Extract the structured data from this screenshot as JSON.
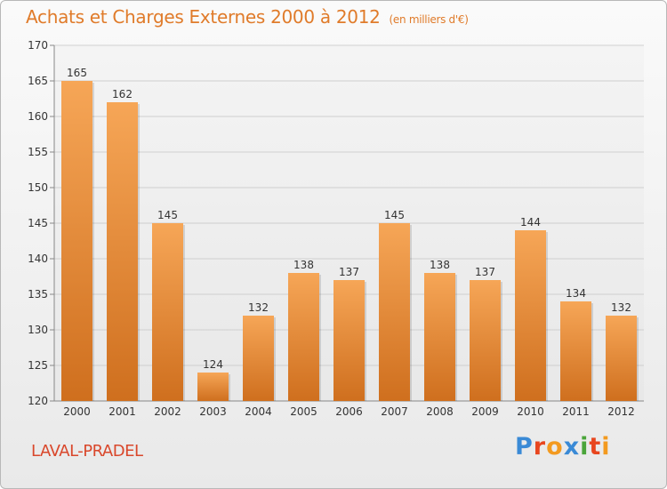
{
  "header": {
    "title": "Achats et Charges Externes 2000 à 2012",
    "unit": "(en milliers d'€)"
  },
  "footer": {
    "commune": "LAVAL-PRADEL",
    "logo_letters": [
      "P",
      "r",
      "o",
      "x",
      "i",
      "t",
      "i"
    ]
  },
  "colors": {
    "bar_top": "#f6a657",
    "bar_bottom": "#cf6f1e",
    "title": "#e07b2a",
    "commune": "#d9472b",
    "logo": [
      "#3a8ad6",
      "#e8461f",
      "#f39a1f",
      "#3a8ad6",
      "#4aa53a",
      "#e8461f",
      "#f39a1f"
    ]
  },
  "chart_data": {
    "type": "bar",
    "title": "Achats et Charges Externes 2000 à 2012",
    "subtitle": "(en milliers d'€)",
    "categories": [
      "2000",
      "2001",
      "2002",
      "2003",
      "2004",
      "2005",
      "2006",
      "2007",
      "2008",
      "2009",
      "2010",
      "2011",
      "2012"
    ],
    "values": [
      165,
      162,
      145,
      124,
      132,
      138,
      137,
      145,
      138,
      137,
      144,
      134,
      132
    ],
    "yticks": [
      120,
      125,
      130,
      135,
      140,
      145,
      150,
      155,
      160,
      165,
      170
    ],
    "ylim": [
      120,
      170
    ],
    "grid": true,
    "data_labels": true
  }
}
